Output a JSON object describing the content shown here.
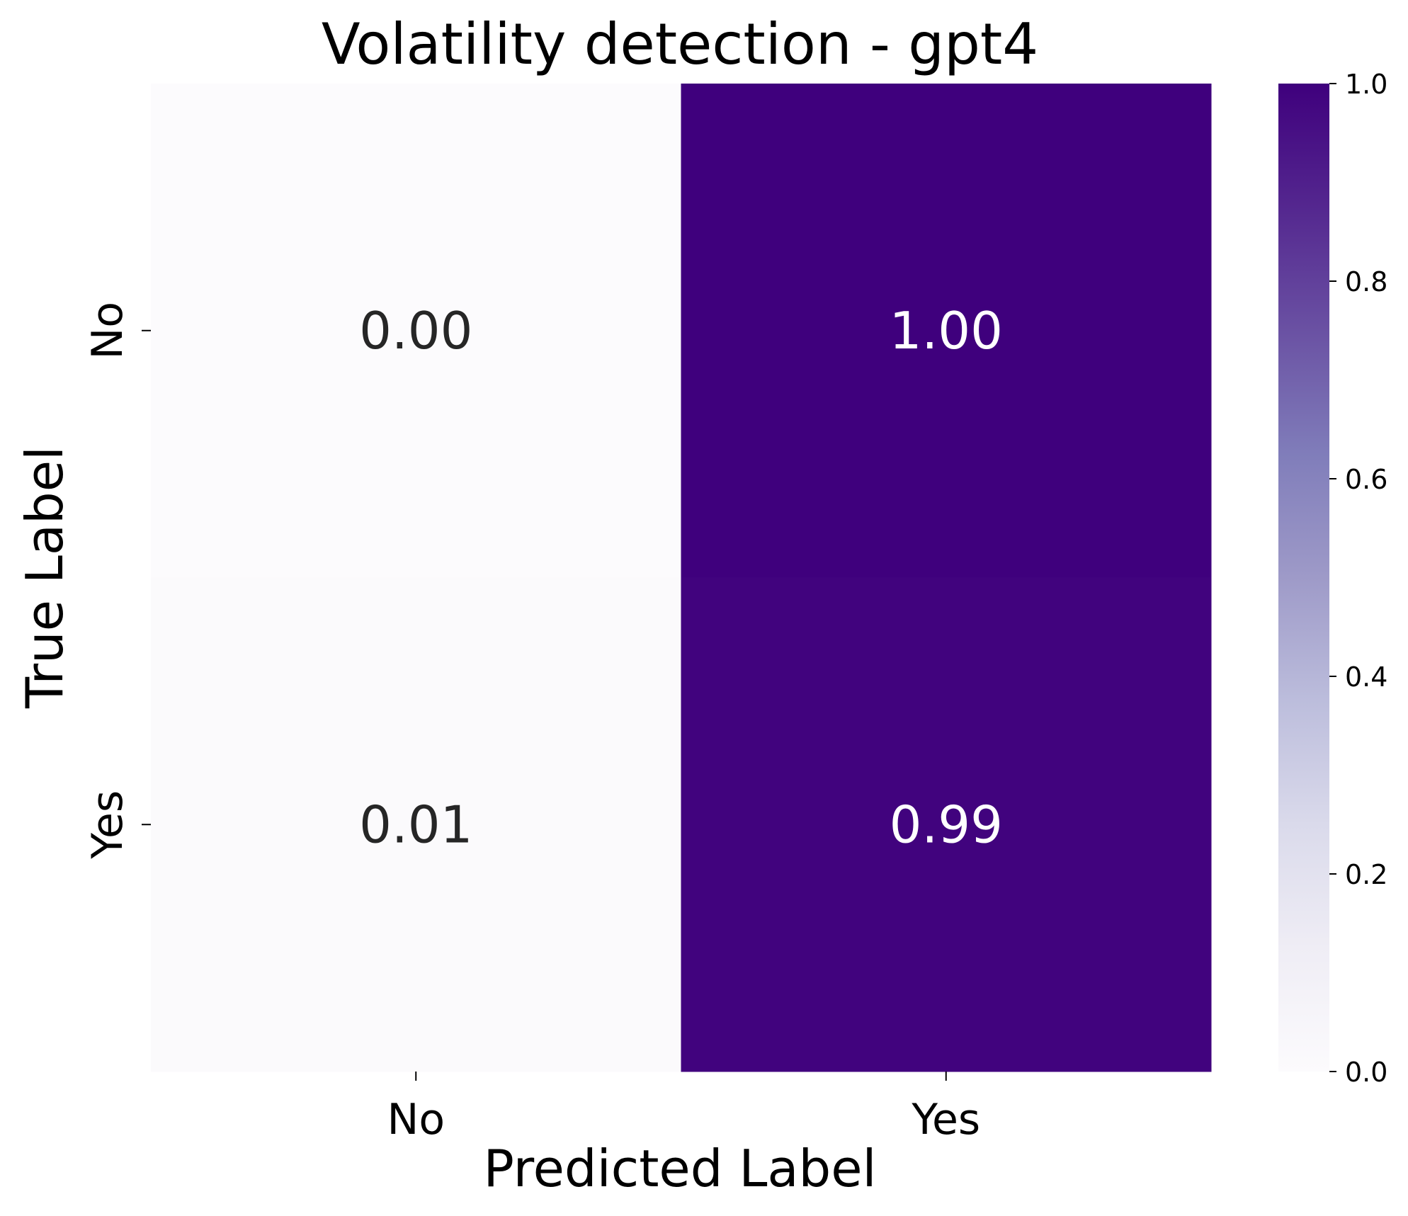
{
  "chart_data": {
    "type": "heatmap",
    "title": "Volatility detection - gpt4",
    "xlabel": "Predicted Label",
    "ylabel": "True Label",
    "x_categories": [
      "No",
      "Yes"
    ],
    "y_categories": [
      "No",
      "Yes"
    ],
    "values": [
      [
        0.0,
        1.0
      ],
      [
        0.01,
        0.99
      ]
    ],
    "annotations": [
      [
        "0.00",
        "1.00"
      ],
      [
        "0.01",
        "0.99"
      ]
    ],
    "colormap": "Purples",
    "color_low": "#fcfbfd",
    "color_high": "#3f007d",
    "colorbar": {
      "range": [
        0.0,
        1.0
      ],
      "ticks": [
        "0.0",
        "0.2",
        "0.4",
        "0.6",
        "0.8",
        "1.0"
      ]
    },
    "legend": "none"
  }
}
